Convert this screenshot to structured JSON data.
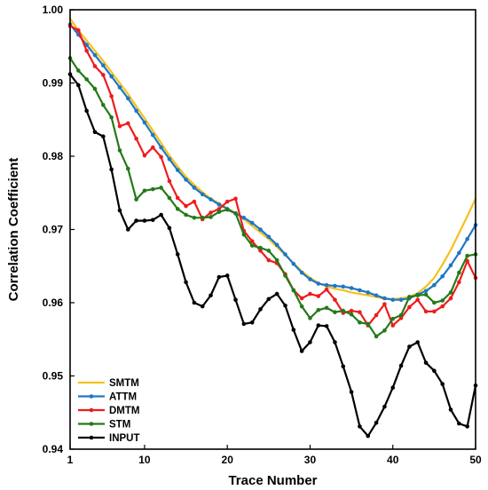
{
  "chart_data": {
    "type": "line",
    "xlabel": "Trace Number",
    "ylabel": "Correlation Coefficient",
    "xlim": [
      1,
      50
    ],
    "ylim": [
      0.94,
      1.0
    ],
    "xticks": [
      1,
      10,
      20,
      30,
      40,
      50
    ],
    "yticks": [
      0.94,
      0.95,
      0.96,
      0.97,
      0.98,
      0.99,
      1.0
    ],
    "ytick_labels": [
      "0.94",
      "0.95",
      "0.96",
      "0.97",
      "0.98",
      "0.99",
      "1.00"
    ],
    "grid": false,
    "legend_position": "bottom-left",
    "x": [
      1,
      2,
      3,
      4,
      5,
      6,
      7,
      8,
      9,
      10,
      11,
      12,
      13,
      14,
      15,
      16,
      17,
      18,
      19,
      20,
      21,
      22,
      23,
      24,
      25,
      26,
      27,
      28,
      29,
      30,
      31,
      32,
      33,
      34,
      35,
      36,
      37,
      38,
      39,
      40,
      41,
      42,
      43,
      44,
      45,
      46,
      47,
      48,
      49,
      50
    ],
    "series": [
      {
        "name": "SMTM",
        "color": "#f5c11a",
        "marker": false,
        "values": [
          0.9988,
          0.9972,
          0.9958,
          0.9944,
          0.993,
          0.9915,
          0.99,
          0.9885,
          0.9868,
          0.9852,
          0.9835,
          0.9818,
          0.9801,
          0.9786,
          0.9772,
          0.9761,
          0.9751,
          0.9742,
          0.9736,
          0.9729,
          0.9722,
          0.9714,
          0.9705,
          0.9696,
          0.9687,
          0.9676,
          0.9665,
          0.9654,
          0.9643,
          0.9634,
          0.9627,
          0.9622,
          0.9619,
          0.9617,
          0.9614,
          0.9612,
          0.961,
          0.9608,
          0.9605,
          0.9605,
          0.9606,
          0.9608,
          0.9613,
          0.9622,
          0.9634,
          0.9652,
          0.9672,
          0.9695,
          0.9718,
          0.9742
        ]
      },
      {
        "name": "ATTM",
        "color": "#1f77c4",
        "marker": true,
        "values": [
          0.998,
          0.9966,
          0.9952,
          0.9938,
          0.9924,
          0.9909,
          0.9894,
          0.9879,
          0.9862,
          0.9846,
          0.9829,
          0.9812,
          0.9796,
          0.9781,
          0.9768,
          0.9757,
          0.9748,
          0.9741,
          0.9734,
          0.9728,
          0.9722,
          0.9716,
          0.9709,
          0.97,
          0.969,
          0.9679,
          0.9666,
          0.9653,
          0.9641,
          0.9632,
          0.9626,
          0.9624,
          0.9623,
          0.9622,
          0.962,
          0.9617,
          0.9614,
          0.961,
          0.9606,
          0.9604,
          0.9604,
          0.9606,
          0.9611,
          0.9616,
          0.9624,
          0.9636,
          0.9651,
          0.9668,
          0.9687,
          0.9706
        ]
      },
      {
        "name": "DMTM",
        "color": "#ee1c1c",
        "marker": true,
        "values": [
          0.9978,
          0.9972,
          0.9944,
          0.9923,
          0.9911,
          0.9882,
          0.9841,
          0.9845,
          0.9824,
          0.9801,
          0.9812,
          0.9799,
          0.9766,
          0.9743,
          0.9732,
          0.9738,
          0.9714,
          0.9723,
          0.9728,
          0.9738,
          0.9742,
          0.9698,
          0.9684,
          0.9671,
          0.9658,
          0.9654,
          0.9639,
          0.9617,
          0.9606,
          0.9612,
          0.9609,
          0.9618,
          0.9604,
          0.9586,
          0.9589,
          0.9587,
          0.9569,
          0.9583,
          0.9598,
          0.9569,
          0.9579,
          0.9594,
          0.9604,
          0.9588,
          0.9588,
          0.9595,
          0.9606,
          0.9628,
          0.9657,
          0.9634
        ]
      },
      {
        "name": "STM",
        "color": "#237a17",
        "marker": true,
        "values": [
          0.9934,
          0.9917,
          0.9905,
          0.9892,
          0.987,
          0.9853,
          0.9808,
          0.9783,
          0.9741,
          0.9753,
          0.9755,
          0.9757,
          0.9743,
          0.9728,
          0.972,
          0.9716,
          0.9716,
          0.9717,
          0.9724,
          0.9727,
          0.9722,
          0.9693,
          0.9678,
          0.9675,
          0.9671,
          0.9658,
          0.9637,
          0.9617,
          0.9595,
          0.9579,
          0.959,
          0.9593,
          0.9587,
          0.9589,
          0.9584,
          0.9573,
          0.9571,
          0.9554,
          0.9562,
          0.9578,
          0.9583,
          0.9608,
          0.961,
          0.9611,
          0.96,
          0.9603,
          0.9614,
          0.9641,
          0.9664,
          0.9666
        ]
      },
      {
        "name": "INPUT",
        "color": "#000000",
        "marker": true,
        "values": [
          0.9912,
          0.9897,
          0.9862,
          0.9833,
          0.9827,
          0.9782,
          0.9726,
          0.97,
          0.9712,
          0.9712,
          0.9713,
          0.972,
          0.9702,
          0.9666,
          0.9628,
          0.96,
          0.9595,
          0.961,
          0.9635,
          0.9637,
          0.9604,
          0.9571,
          0.9573,
          0.9591,
          0.9605,
          0.9612,
          0.9596,
          0.9563,
          0.9534,
          0.9546,
          0.9569,
          0.9568,
          0.9546,
          0.9513,
          0.9478,
          0.9431,
          0.9418,
          0.9436,
          0.9458,
          0.9484,
          0.9514,
          0.954,
          0.9546,
          0.9518,
          0.9507,
          0.9489,
          0.9454,
          0.9435,
          0.9431,
          0.9487
        ]
      }
    ]
  }
}
